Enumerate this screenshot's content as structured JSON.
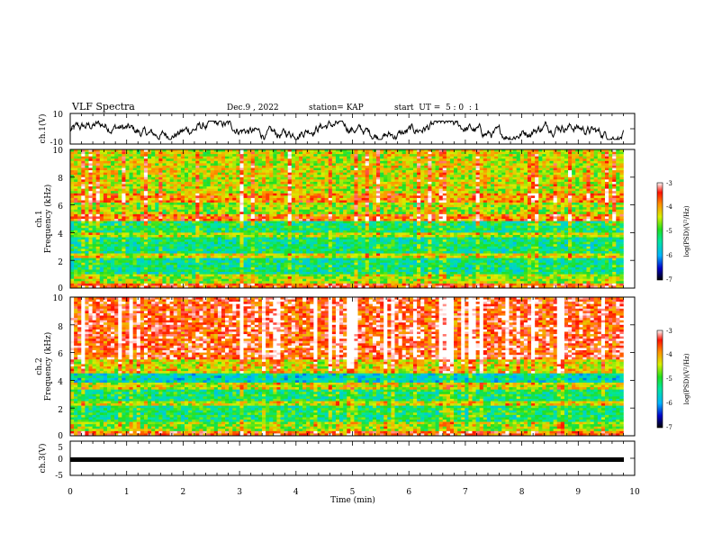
{
  "header": {
    "title": "VLF Spectra",
    "date": "Dec.9 , 2022",
    "station": "station= KAP",
    "start": "start  UT =  5 : 0  : 1"
  },
  "chart_data": [
    {
      "id": "ch1-waveform",
      "type": "line",
      "ylabel": "ch.1(V)",
      "ylim": [
        -10,
        10
      ],
      "yticks": [
        "10",
        "-10"
      ],
      "xlim": [
        0,
        10
      ],
      "series_description": "noisy waveform oscillating roughly between -6 and 4 V over 0 to 9.8 min"
    },
    {
      "id": "ch1-spectrogram",
      "type": "heatmap",
      "ylabel_line1": "ch.1",
      "ylabel_line2": "Frequency (kHz)",
      "ylim": [
        0,
        10
      ],
      "yticks": [
        "0",
        "2",
        "4",
        "6",
        "8",
        "10"
      ],
      "xlim": [
        0,
        10
      ],
      "data_end_min": 9.8,
      "bands": [
        {
          "from": 0,
          "to": 0.4,
          "level": -3.6
        },
        {
          "from": 0.4,
          "to": 1.0,
          "level": -4.6
        },
        {
          "from": 1.0,
          "to": 2.2,
          "level": -5.3
        },
        {
          "from": 2.2,
          "to": 2.5,
          "level": -4.4
        },
        {
          "from": 2.5,
          "to": 3.6,
          "level": -5.3
        },
        {
          "from": 3.6,
          "to": 4.0,
          "level": -4.5
        },
        {
          "from": 4.0,
          "to": 4.8,
          "level": -5.2
        },
        {
          "from": 4.8,
          "to": 5.4,
          "level": -3.8
        },
        {
          "from": 5.4,
          "to": 6.2,
          "level": -4.6
        },
        {
          "from": 6.2,
          "to": 6.8,
          "level": -3.9
        },
        {
          "from": 6.8,
          "to": 10,
          "level": -4.4
        }
      ],
      "colorbar": {
        "label": "log(PSD)(V²/Hz)",
        "range": [
          -7,
          -3
        ],
        "ticks": [
          "-3",
          "-4",
          "-5",
          "-6",
          "-7"
        ]
      }
    },
    {
      "id": "ch2-spectrogram",
      "type": "heatmap",
      "ylabel_line1": "ch.2",
      "ylabel_line2": "Frequency (kHz)",
      "ylim": [
        0,
        10
      ],
      "yticks": [
        "0",
        "2",
        "4",
        "6",
        "8",
        "10"
      ],
      "xlim": [
        0,
        10
      ],
      "data_end_min": 9.8,
      "bands": [
        {
          "from": 0,
          "to": 0.4,
          "level": -3.7
        },
        {
          "from": 0.4,
          "to": 1.0,
          "level": -4.6
        },
        {
          "from": 1.0,
          "to": 2.2,
          "level": -5.2
        },
        {
          "from": 2.2,
          "to": 2.5,
          "level": -4.4
        },
        {
          "from": 2.5,
          "to": 3.4,
          "level": -5.2
        },
        {
          "from": 3.4,
          "to": 3.8,
          "level": -4.4
        },
        {
          "from": 3.8,
          "to": 4.5,
          "level": -5.6
        },
        {
          "from": 4.5,
          "to": 5.5,
          "level": -4.3
        },
        {
          "from": 5.5,
          "to": 10,
          "level": -3.5
        }
      ],
      "colorbar": {
        "label": "log(PSD)(V²/Hz)",
        "range": [
          -7,
          -3
        ],
        "ticks": [
          "-3",
          "-4",
          "-5",
          "-6",
          "-7"
        ]
      }
    },
    {
      "id": "ch3-waveform",
      "type": "line",
      "ylabel": "ch.3(V)",
      "ylim": [
        -5,
        5
      ],
      "yticks": [
        "5",
        "0",
        "-5"
      ],
      "xlim": [
        0,
        10
      ],
      "xlabel": "Time (min)",
      "xticks": [
        "0",
        "1",
        "2",
        "3",
        "4",
        "5",
        "6",
        "7",
        "8",
        "9",
        "10"
      ],
      "series_description": "flat thick band near -1 V from 0 to 9.8 min"
    }
  ]
}
